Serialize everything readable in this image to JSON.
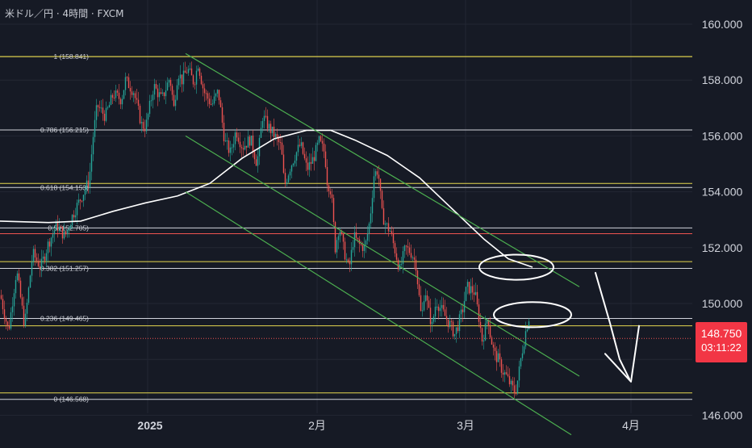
{
  "header": {
    "symbol_title": "米ドル／円 · 4時間 · FXCM"
  },
  "price_axis": {
    "labels": [
      "160.000",
      "158.000",
      "156.000",
      "154.000",
      "152.000",
      "150.000",
      "146.000"
    ]
  },
  "time_axis": {
    "labels": [
      "2025",
      "2月",
      "3月",
      "4月"
    ]
  },
  "current_price": {
    "value": "148.750",
    "countdown": "03:11:22"
  },
  "colors": {
    "background": "#161a25",
    "grid": "#232733",
    "up": "#26a69a",
    "down": "#ef5350",
    "fib_yellow": "#e6d84f",
    "fib_white": "#d1d4dc",
    "channel": "#4caf50",
    "drawing": "#ffffff",
    "badge": "#f23645"
  },
  "chart_data": {
    "type": "line",
    "series_kind": "candlestick",
    "y_unit": "JPY per USD",
    "ylim": [
      145.8,
      160.6
    ],
    "grid": true,
    "x_ticks": [
      "2025",
      "2月",
      "3月",
      "4月"
    ],
    "fibonacci": [
      {
        "label": "1 (158.841)",
        "ratio": 1,
        "price": 158.841
      },
      {
        "label": "0.786 (156.215)",
        "ratio": 0.786,
        "price": 156.215
      },
      {
        "label": "0.618 (154.153)",
        "ratio": 0.618,
        "price": 154.153
      },
      {
        "label": "0.5 (152.705)",
        "ratio": 0.5,
        "price": 152.705
      },
      {
        "label": "0.382 (151.257)",
        "ratio": 0.382,
        "price": 151.257
      },
      {
        "label": "0.236 (149.465)",
        "ratio": 0.236,
        "price": 149.465
      },
      {
        "label": "0 (146.568)",
        "ratio": 0,
        "price": 146.568
      }
    ],
    "horizontal_levels": [
      {
        "price": 158.84,
        "color": "yellow"
      },
      {
        "price": 154.3,
        "color": "yellow"
      },
      {
        "price": 152.5,
        "color": "red"
      },
      {
        "price": 151.5,
        "color": "yellow"
      },
      {
        "price": 149.2,
        "color": "yellow"
      },
      {
        "price": 146.8,
        "color": "yellow"
      }
    ],
    "price_path": [
      [
        0,
        150.3
      ],
      [
        10,
        149.0
      ],
      [
        20,
        151.2
      ],
      [
        30,
        149.2
      ],
      [
        40,
        151.8
      ],
      [
        50,
        151.3
      ],
      [
        60,
        152.2
      ],
      [
        70,
        152.8
      ],
      [
        80,
        152.4
      ],
      [
        90,
        153.2
      ],
      [
        100,
        153.8
      ],
      [
        110,
        154.4
      ],
      [
        115,
        156.0
      ],
      [
        120,
        157.1
      ],
      [
        130,
        156.7
      ],
      [
        140,
        157.5
      ],
      [
        150,
        157.3
      ],
      [
        155,
        158.0
      ],
      [
        165,
        157.6
      ],
      [
        175,
        156.4
      ],
      [
        180,
        156.3
      ],
      [
        190,
        157.8
      ],
      [
        200,
        157.3
      ],
      [
        210,
        158.1
      ],
      [
        215,
        157.0
      ],
      [
        220,
        158.3
      ],
      [
        225,
        158.0
      ],
      [
        232,
        158.4
      ],
      [
        240,
        157.9
      ],
      [
        245,
        158.6
      ],
      [
        252,
        157.6
      ],
      [
        262,
        157.1
      ],
      [
        270,
        157.6
      ],
      [
        278,
        155.8
      ],
      [
        285,
        155.4
      ],
      [
        292,
        156.2
      ],
      [
        300,
        155.6
      ],
      [
        310,
        155.9
      ],
      [
        318,
        155.0
      ],
      [
        325,
        156.7
      ],
      [
        333,
        156.3
      ],
      [
        340,
        156.0
      ],
      [
        348,
        155.6
      ],
      [
        352,
        154.2
      ],
      [
        358,
        154.8
      ],
      [
        365,
        155.3
      ],
      [
        372,
        155.7
      ],
      [
        380,
        154.8
      ],
      [
        388,
        155.2
      ],
      [
        395,
        155.8
      ],
      [
        402,
        155.4
      ],
      [
        405,
        154.4
      ],
      [
        410,
        154.0
      ],
      [
        415,
        152.0
      ],
      [
        420,
        152.8
      ],
      [
        425,
        152.0
      ],
      [
        432,
        151.2
      ],
      [
        438,
        152.4
      ],
      [
        445,
        152.1
      ],
      [
        452,
        152.0
      ],
      [
        458,
        153.0
      ],
      [
        463,
        154.6
      ],
      [
        468,
        154.8
      ],
      [
        473,
        153.2
      ],
      [
        478,
        152.8
      ],
      [
        483,
        152.6
      ],
      [
        490,
        151.8
      ],
      [
        495,
        151.2
      ],
      [
        502,
        152.0
      ],
      [
        510,
        151.8
      ],
      [
        515,
        151.4
      ],
      [
        518,
        150.5
      ],
      [
        522,
        149.4
      ],
      [
        526,
        150.6
      ],
      [
        530,
        149.8
      ],
      [
        535,
        149.2
      ],
      [
        540,
        150.1
      ],
      [
        546,
        149.8
      ],
      [
        552,
        149.5
      ],
      [
        558,
        149.2
      ],
      [
        563,
        148.9
      ],
      [
        568,
        149.3
      ],
      [
        573,
        149.8
      ],
      [
        578,
        150.6
      ],
      [
        583,
        150.5
      ],
      [
        588,
        150.4
      ],
      [
        593,
        149.5
      ],
      [
        597,
        148.7
      ],
      [
        601,
        149.1
      ],
      [
        604,
        149.6
      ],
      [
        607,
        148.9
      ],
      [
        612,
        148.2
      ],
      [
        617,
        148.0
      ],
      [
        622,
        147.6
      ],
      [
        627,
        147.4
      ],
      [
        632,
        147.1
      ],
      [
        638,
        146.8
      ],
      [
        642,
        147.4
      ],
      [
        646,
        148.2
      ],
      [
        651,
        149.0
      ],
      [
        655,
        149.5
      ]
    ],
    "moving_average_white": [
      [
        0,
        152.95
      ],
      [
        60,
        152.9
      ],
      [
        100,
        152.95
      ],
      [
        140,
        153.3
      ],
      [
        180,
        153.6
      ],
      [
        220,
        153.85
      ],
      [
        260,
        154.3
      ],
      [
        300,
        155.2
      ],
      [
        340,
        155.9
      ],
      [
        380,
        156.2
      ],
      [
        410,
        156.2
      ],
      [
        440,
        155.85
      ],
      [
        480,
        155.3
      ],
      [
        520,
        154.5
      ],
      [
        560,
        153.4
      ],
      [
        600,
        152.3
      ],
      [
        630,
        151.6
      ],
      [
        660,
        151.3
      ]
    ],
    "channel_lines": [
      {
        "from": [
          230,
          158.95
        ],
        "to": [
          718,
          150.6
        ]
      },
      {
        "from": [
          230,
          156.0
        ],
        "to": [
          718,
          147.4
        ]
      },
      {
        "from": [
          230,
          154.0
        ],
        "to": [
          708,
          145.3
        ]
      }
    ],
    "drawings": [
      {
        "kind": "ellipse",
        "cx": 640,
        "cy": 151.3,
        "rx": 46,
        "ry": 0.45
      },
      {
        "kind": "ellipse",
        "cx": 660,
        "cy": 149.6,
        "rx": 48,
        "ry": 0.45
      },
      {
        "kind": "arrow",
        "path": [
          [
            738,
            151.1
          ],
          [
            756,
            149.3
          ],
          [
            768,
            148.0
          ],
          [
            780,
            147.3
          ]
        ]
      },
      {
        "kind": "tick",
        "path": [
          [
            750,
            148.2
          ],
          [
            782,
            147.2
          ],
          [
            792,
            149.2
          ]
        ]
      }
    ]
  }
}
